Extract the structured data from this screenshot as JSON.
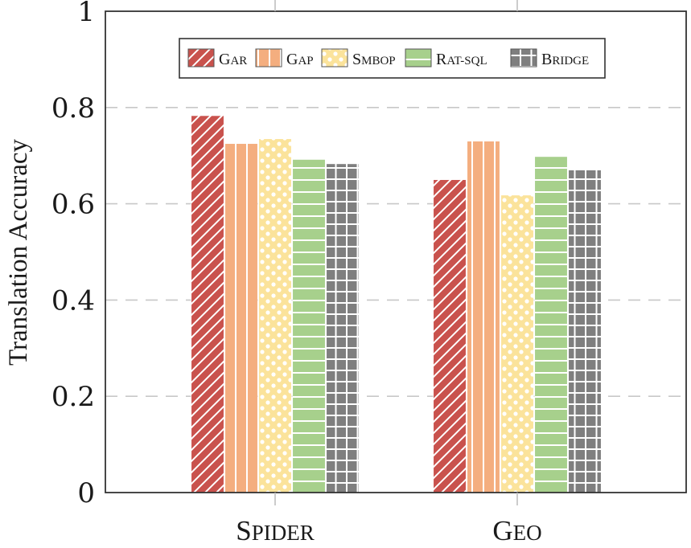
{
  "chart_data": {
    "type": "bar",
    "title": "",
    "xlabel": "",
    "ylabel": "Translation Accuracy",
    "ylim": [
      0,
      1
    ],
    "yticks": [
      0,
      0.2,
      0.4,
      0.6,
      0.8,
      1
    ],
    "ytick_labels": [
      "0",
      "0.2",
      "0.4",
      "0.6",
      "0.8",
      "1"
    ],
    "grid": "horizontal dashed",
    "legend_position": "top-center",
    "categories": [
      "SPIDER",
      "GEO"
    ],
    "category_labels": [
      {
        "first": "S",
        "rest": "PIDER"
      },
      {
        "first": "G",
        "rest": "EO"
      }
    ],
    "series": [
      {
        "name": "GAR",
        "label_first": "G",
        "label_rest": "AR",
        "color": "#c9524d",
        "pattern": "diagonal",
        "values": [
          0.783,
          0.65
        ]
      },
      {
        "name": "GAP",
        "label_first": "G",
        "label_rest": "AP",
        "color": "#f4ae7f",
        "pattern": "vertical",
        "values": [
          0.725,
          0.73
        ]
      },
      {
        "name": "SMBOP",
        "label_first": "S",
        "label_rest": "MBOP",
        "color": "#fbe39b",
        "pattern": "dots",
        "values": [
          0.735,
          0.618
        ]
      },
      {
        "name": "RAT-SQL",
        "label_first": "R",
        "label_rest": "AT-SQL",
        "color": "#a7d08c",
        "pattern": "horizontal",
        "values": [
          0.692,
          0.698
        ]
      },
      {
        "name": "BRIDGE",
        "label_first": "B",
        "label_rest": "RIDGE",
        "color": "#7f7f7f",
        "pattern": "grid",
        "values": [
          0.683,
          0.67
        ]
      }
    ]
  }
}
